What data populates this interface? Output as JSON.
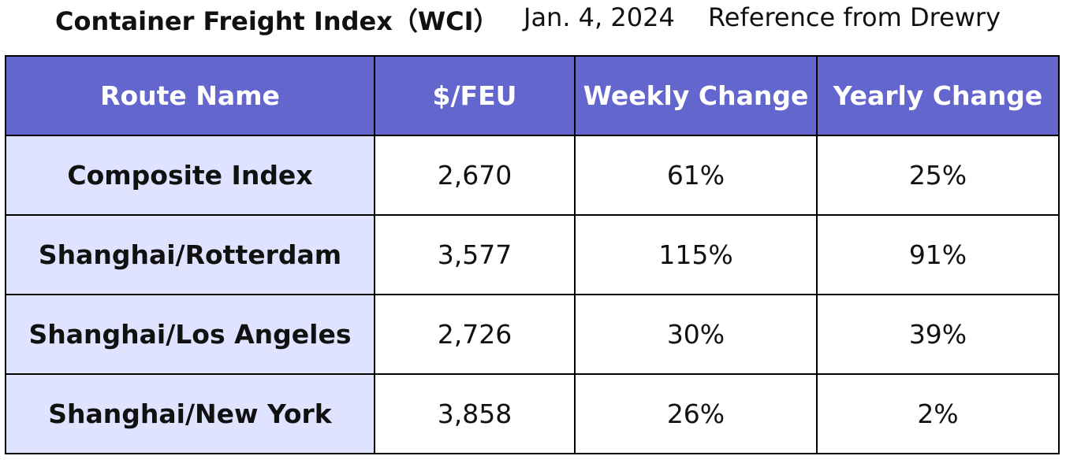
{
  "title": {
    "main": "Container Freight Index（WCI）",
    "date": "Jan. 4, 2024",
    "source": "Reference from Drewry"
  },
  "colors": {
    "header_bg": "#6366cc",
    "route_col_bg": "#dfe3ff",
    "border": "#000000",
    "header_text": "#ffffff"
  },
  "chart_data": {
    "type": "table",
    "title": "Container Freight Index（WCI）",
    "columns": [
      "Route Name",
      "$/FEU",
      "Weekly Change",
      "Yearly Change"
    ],
    "rows": [
      [
        "Composite Index",
        "2,670",
        "61%",
        "25%"
      ],
      [
        "Shanghai/Rotterdam",
        "3,577",
        "115%",
        "91%"
      ],
      [
        "Shanghai/Los Angeles",
        "2,726",
        "30%",
        "39%"
      ],
      [
        "Shanghai/New York",
        "3,858",
        "26%",
        "2%"
      ]
    ]
  }
}
